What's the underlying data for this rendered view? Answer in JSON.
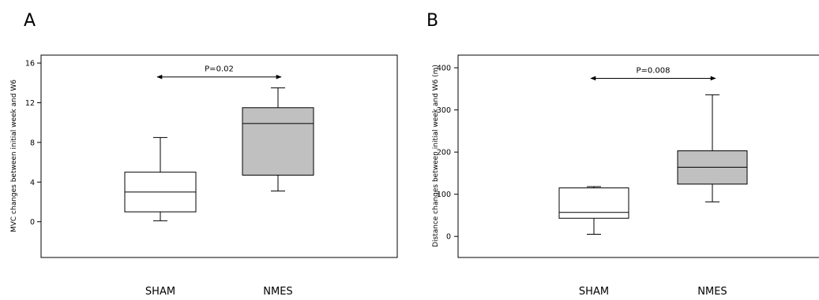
{
  "chart_data": [
    {
      "type": "box",
      "panel_label": "A",
      "title": "",
      "xlabel": "",
      "ylabel": "MVC changes between initial week and W6",
      "yticks": [
        0,
        4,
        8,
        12,
        16
      ],
      "ylim": [
        -3.6,
        16.8
      ],
      "grid": false,
      "categories": [
        "SHAM",
        "NMES"
      ],
      "series": [
        {
          "whisker_low": 0.1,
          "q1": 1.0,
          "median": 3.0,
          "q3": 5.0,
          "whisker_high": 8.5,
          "fill": "#ffffff"
        },
        {
          "whisker_low": 3.1,
          "q1": 4.7,
          "median": 9.9,
          "q3": 11.5,
          "whisker_high": 13.5,
          "fill": "#c0c0c0"
        }
      ],
      "annotation": {
        "text": "P=0.02",
        "between": [
          "SHAM",
          "NMES"
        ],
        "y": 14.6
      }
    },
    {
      "type": "box",
      "panel_label": "B",
      "title": "",
      "xlabel": "",
      "ylabel": "Distance changes between initial week and W6 (m)",
      "yticks": [
        0,
        100,
        200,
        300,
        400
      ],
      "ylim": [
        -50,
        430
      ],
      "grid": false,
      "categories": [
        "SHAM",
        "NMES"
      ],
      "series": [
        {
          "whisker_low": 5,
          "q1": 43,
          "median": 57,
          "q3": 115,
          "whisker_high": 118,
          "fill": "#ffffff"
        },
        {
          "whisker_low": 82,
          "q1": 124,
          "median": 164,
          "q3": 203,
          "whisker_high": 336,
          "fill": "#c0c0c0"
        }
      ],
      "annotation": {
        "text": "P=0.008",
        "between": [
          "SHAM",
          "NMES"
        ],
        "y": 375
      }
    }
  ]
}
